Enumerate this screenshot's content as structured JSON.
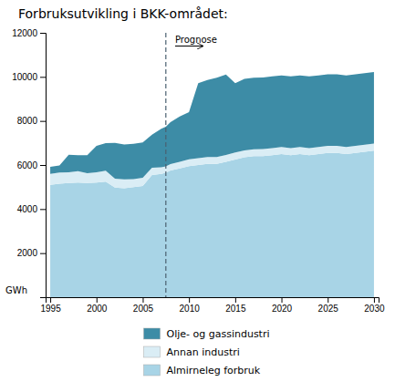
{
  "chart_data": {
    "type": "area",
    "stacked": true,
    "title": "Forbruksutvikling i BKK-området:",
    "ylabel": "GWh",
    "x": [
      1995,
      1996,
      1997,
      1998,
      1999,
      2000,
      2001,
      2002,
      2003,
      2004,
      2005,
      2006,
      2007,
      2007.5,
      2007.5,
      2008,
      2009,
      2010,
      2011,
      2012,
      2013,
      2014,
      2015,
      2016,
      2017,
      2018,
      2019,
      2020,
      2021,
      2022,
      2023,
      2024,
      2025,
      2026,
      2027,
      2028,
      2029,
      2030
    ],
    "series": [
      {
        "name": "Almirneleg forbruk",
        "color": "#a8d4e6",
        "values": [
          5100,
          5150,
          5180,
          5200,
          5180,
          5200,
          5250,
          4980,
          4950,
          5000,
          5050,
          5550,
          5600,
          5650,
          5650,
          5750,
          5850,
          5950,
          6000,
          6050,
          6050,
          6150,
          6250,
          6350,
          6400,
          6400,
          6450,
          6500,
          6450,
          6500,
          6450,
          6500,
          6550,
          6550,
          6500,
          6550,
          6600,
          6650
        ]
      },
      {
        "name": "Annan industri",
        "color": "#daedf5",
        "values": [
          500,
          510,
          490,
          520,
          450,
          470,
          490,
          400,
          400,
          360,
          370,
          330,
          300,
          290,
          290,
          295,
          300,
          305,
          310,
          310,
          310,
          310,
          315,
          315,
          315,
          320,
          320,
          320,
          320,
          320,
          320,
          320,
          320,
          320,
          320,
          320,
          320,
          320
        ]
      },
      {
        "name": "Olje- og gassindustri",
        "color": "#3d8ca6",
        "values": [
          320,
          320,
          800,
          720,
          820,
          1200,
          1250,
          1620,
          1580,
          1600,
          1600,
          1500,
          1750,
          1800,
          1800,
          1900,
          2050,
          2150,
          3400,
          3500,
          3600,
          3650,
          3150,
          3250,
          3250,
          3250,
          3250,
          3250,
          3250,
          3250,
          3250,
          3250,
          3250,
          3250,
          3250,
          3250,
          3250,
          3250
        ]
      }
    ],
    "xlim": [
      1994.5,
      2030.5
    ],
    "ylim": [
      0,
      12000
    ],
    "xticks": [
      1995,
      2000,
      2005,
      2010,
      2015,
      2020,
      2025,
      2030
    ],
    "yticks": [
      2000,
      4000,
      6000,
      8000,
      10000,
      12000
    ],
    "grid": false,
    "legend": "bottom",
    "annotations": [
      {
        "type": "vline",
        "x": 2007.5,
        "line_style": "dashed"
      },
      {
        "text": "Prognose",
        "x": 2008.5,
        "x_end": 2011.5,
        "y": 11400
      }
    ]
  }
}
